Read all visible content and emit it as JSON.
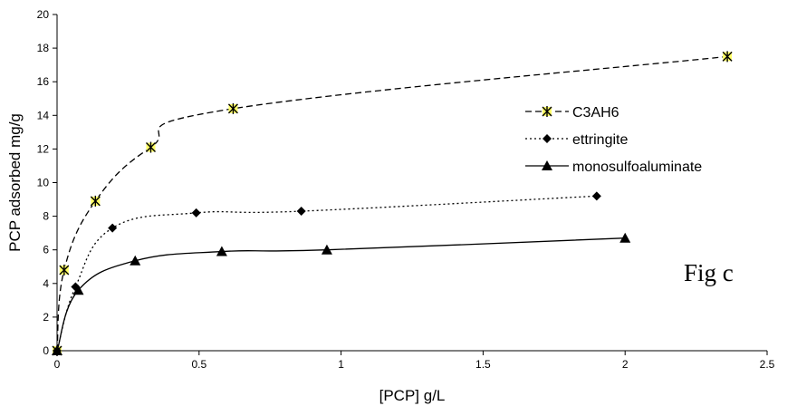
{
  "chart_data": {
    "type": "line",
    "title": "",
    "xlabel": "[PCP] g/L",
    "ylabel": "PCP adsorbed mg/g",
    "xlim": [
      0,
      2.5
    ],
    "ylim": [
      0,
      20
    ],
    "x_ticks": [
      0,
      0.5,
      1,
      1.5,
      2,
      2.5
    ],
    "x_tick_labels": [
      "0",
      "0.5",
      "1",
      "1.5",
      "2",
      "2.5"
    ],
    "y_ticks": [
      0,
      2,
      4,
      6,
      8,
      10,
      12,
      14,
      16,
      18,
      20
    ],
    "y_tick_labels": [
      "0",
      "2",
      "4",
      "6",
      "8",
      "10",
      "12",
      "14",
      "16",
      "18",
      "20"
    ],
    "grid": false,
    "legend_position": "right",
    "annotation": "Fig c",
    "series": [
      {
        "name": "C3AH6",
        "marker": "star",
        "line_style": "dashed",
        "color": "#000000",
        "marker_fill": "#ffff66",
        "x": [
          0,
          0.025,
          0.135,
          0.33,
          0.62,
          2.36
        ],
        "y": [
          0,
          4.8,
          8.9,
          12.1,
          14.4,
          17.5
        ]
      },
      {
        "name": "ettringite",
        "marker": "diamond",
        "line_style": "dotted",
        "color": "#000000",
        "marker_fill": "#000000",
        "x": [
          0,
          0.065,
          0.195,
          0.49,
          0.86,
          1.9
        ],
        "y": [
          0,
          3.8,
          7.3,
          8.2,
          8.3,
          9.2
        ]
      },
      {
        "name": "monosulfoaluminate",
        "marker": "triangle",
        "line_style": "solid",
        "color": "#000000",
        "marker_fill": "#000000",
        "x": [
          0,
          0.075,
          0.275,
          0.58,
          0.95,
          2.0
        ],
        "y": [
          0,
          3.6,
          5.35,
          5.9,
          6.0,
          6.7
        ]
      }
    ]
  }
}
